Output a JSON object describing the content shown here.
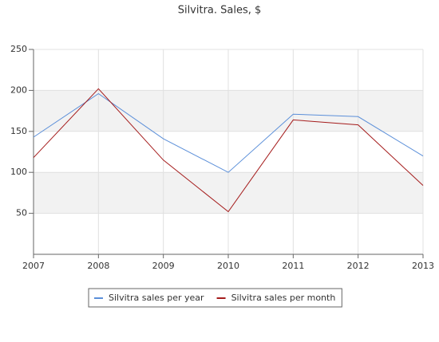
{
  "chart_data": {
    "type": "line",
    "title": "Silvitra. Sales, $",
    "x": [
      2007,
      2008,
      2009,
      2010,
      2011,
      2012,
      2013
    ],
    "series": [
      {
        "name": "Silvitra sales per year",
        "color": "#5b8fd9",
        "values": [
          143,
          196,
          141,
          100,
          171,
          168,
          120
        ]
      },
      {
        "name": "Silvitra sales per month",
        "color": "#a51c1c",
        "values": [
          118,
          202,
          115,
          52,
          164,
          158,
          84
        ]
      }
    ],
    "xlim": [
      2007,
      2013
    ],
    "xticks": [
      2007,
      2008,
      2009,
      2010,
      2011,
      2012,
      2013
    ],
    "ylim": [
      0,
      250
    ],
    "yticks": [
      50,
      100,
      150,
      200,
      250
    ],
    "grid": true,
    "legend": "bottom"
  }
}
